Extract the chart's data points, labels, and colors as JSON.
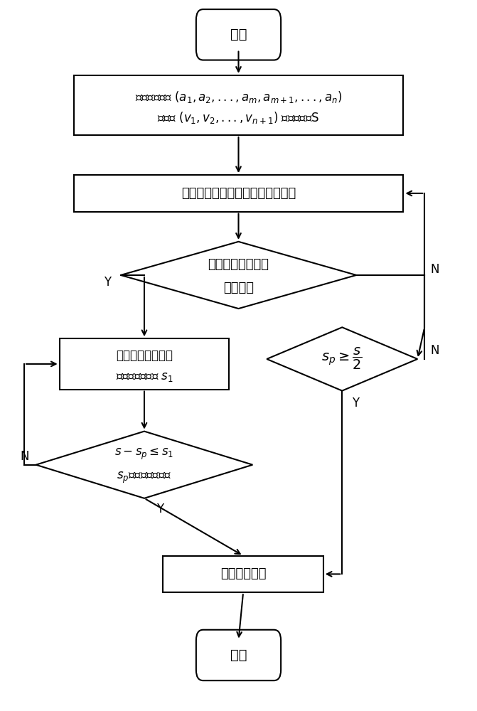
{
  "bg_color": "#ffffff",
  "line_color": "#000000",
  "text_color": "#000000",
  "start_text": "开始",
  "end_text": "结束",
  "box1_line1": "加载加速度表 $(a_1,a_2,...,a_m,a_{m+1},...,a_n)$",
  "box1_line2": "速度表 $(v_1,v_2,...,v_{n+1})$ 和运行行程S",
  "box2_text": "机头步进电机根据加速表进行转动",
  "d1_text1": "当前速度是否大于",
  "d1_text2": "最大速度",
  "box3_text1": "进入匀速段并记加",
  "box3_text2": "速度段脉冲数为 $s_1$",
  "d2_text": "$s_p \\geq \\dfrac{s}{2}$",
  "d3_text1": "$s - s_p \\leq s_1$",
  "d3_text2": "$s_p$为已发送脉冲数",
  "box4_text": "进入减速运行",
  "label_Y": "Y",
  "label_N": "N"
}
